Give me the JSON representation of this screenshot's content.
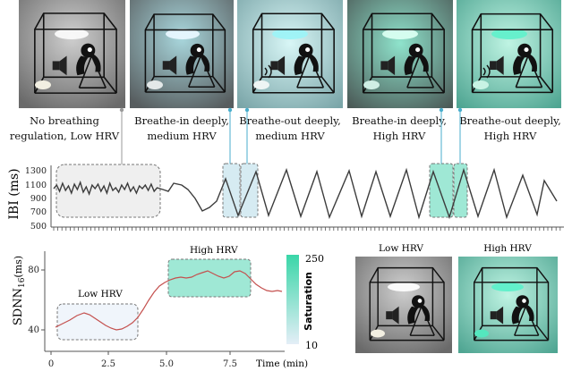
{
  "panels": [
    {
      "caption_line1": "No breathing",
      "caption_line2": "regulation, Low HRV",
      "glow": "#d8d8d8",
      "saturation": 0.0,
      "sound": false
    },
    {
      "caption_line1": "Breathe-in deeply,",
      "caption_line2": "medium HRV",
      "glow": "#6fc3cf",
      "saturation": 0.45,
      "sound": false
    },
    {
      "caption_line1": "Breathe-out deeply,",
      "caption_line2": "medium HRV",
      "glow": "#7fe3e8",
      "saturation": 0.55,
      "sound": true
    },
    {
      "caption_line1": "Breathe-in deeply,",
      "caption_line2": "High HRV",
      "glow": "#4fd6b4",
      "saturation": 0.8,
      "sound": false
    },
    {
      "caption_line1": "Breathe-out deeply,",
      "caption_line2": "High HRV",
      "glow": "#45e2bd",
      "saturation": 1.0,
      "sound": true
    }
  ],
  "ibi": {
    "ylabel": "IBI (ms)",
    "yticks": [
      "1300",
      "1100",
      "900",
      "700",
      "500"
    ]
  },
  "sdnn": {
    "ylabel_main": "SDNN",
    "ylabel_sub": "16",
    "ylabel_unit": "(ms)",
    "yticks": [
      "80",
      "40"
    ],
    "xticks": [
      "0",
      "2.5",
      "5.0",
      "7.5"
    ],
    "xlabel": "Time (min)",
    "low_label": "Low HRV",
    "high_label": "High HRV"
  },
  "colorbar": {
    "label": "Saturation",
    "max_label": "250",
    "min_label": "10",
    "color_top": "#3ad6a8",
    "color_bottom": "#e4eef7"
  },
  "legend_panels": [
    {
      "label": "Low HRV",
      "glow": "#d8d8d8"
    },
    {
      "label": "High HRV",
      "glow": "#45e2bd"
    }
  ],
  "colors": {
    "line_dark": "#3c3c3c",
    "line_red": "#c4504e",
    "box_gray": "#efefef",
    "box_teal": "#9fe8d5",
    "box_blue": "#d6ebf2",
    "connector": "#4aaecd"
  }
}
